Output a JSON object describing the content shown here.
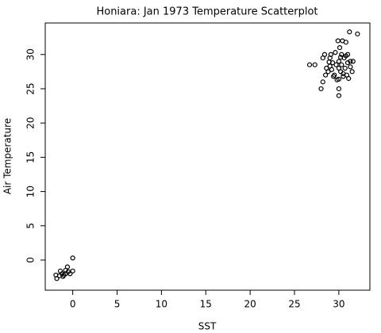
{
  "chart_data": {
    "type": "scatter",
    "title": "Honiara: Jan 1973 Temperature Scatterplot",
    "xlabel": "SST",
    "ylabel": "Air Temperature",
    "x": [
      0,
      0,
      -0.6,
      -0.5,
      -0.8,
      -1,
      -1.2,
      -1.4,
      -1.5,
      -1.8,
      -1.9,
      -1.1,
      -0.8,
      -0.3,
      26.7,
      27.3,
      28,
      28.2,
      28.2,
      28.4,
      28.5,
      28.8,
      29,
      29,
      29.3,
      29.5,
      29.6,
      29.8,
      29.9,
      30,
      30,
      30,
      30,
      30.1,
      30.2,
      30.3,
      30.3,
      30.4,
      30.5,
      30.6,
      30.7,
      30.8,
      30.9,
      31,
      31,
      31.1,
      31.2,
      31.3,
      31.5,
      31.6,
      32.1,
      28.6,
      29.2,
      29.7,
      30.5,
      30.2,
      29.4,
      28.9,
      30.8,
      29.1,
      31.3,
      30
    ],
    "values": [
      0.3,
      -1.6,
      -1,
      -1.7,
      -2,
      -2.2,
      -2,
      -1.6,
      -2.3,
      -2.7,
      -2.2,
      -2.4,
      -1.5,
      -2,
      28.5,
      28.5,
      25,
      26,
      29.5,
      30,
      27,
      27.5,
      28.3,
      29.5,
      28.8,
      27,
      30.3,
      26.3,
      32,
      24,
      25,
      28,
      29,
      31,
      27.5,
      30,
      28.5,
      32,
      26.8,
      29.5,
      28,
      31.8,
      27,
      30,
      28.8,
      26.5,
      33.3,
      29,
      27.5,
      29,
      33,
      28,
      27.8,
      28.5,
      27.2,
      29.6,
      26.8,
      28.9,
      29.8,
      30,
      28.2,
      26.4
    ],
    "color": "#000000",
    "xlim": [
      -3.1,
      33.5
    ],
    "ylim": [
      -4.4,
      34.6
    ],
    "xticks": [
      0,
      5,
      10,
      15,
      20,
      25,
      30
    ],
    "yticks": [
      0,
      5,
      10,
      15,
      20,
      25,
      30
    ]
  }
}
